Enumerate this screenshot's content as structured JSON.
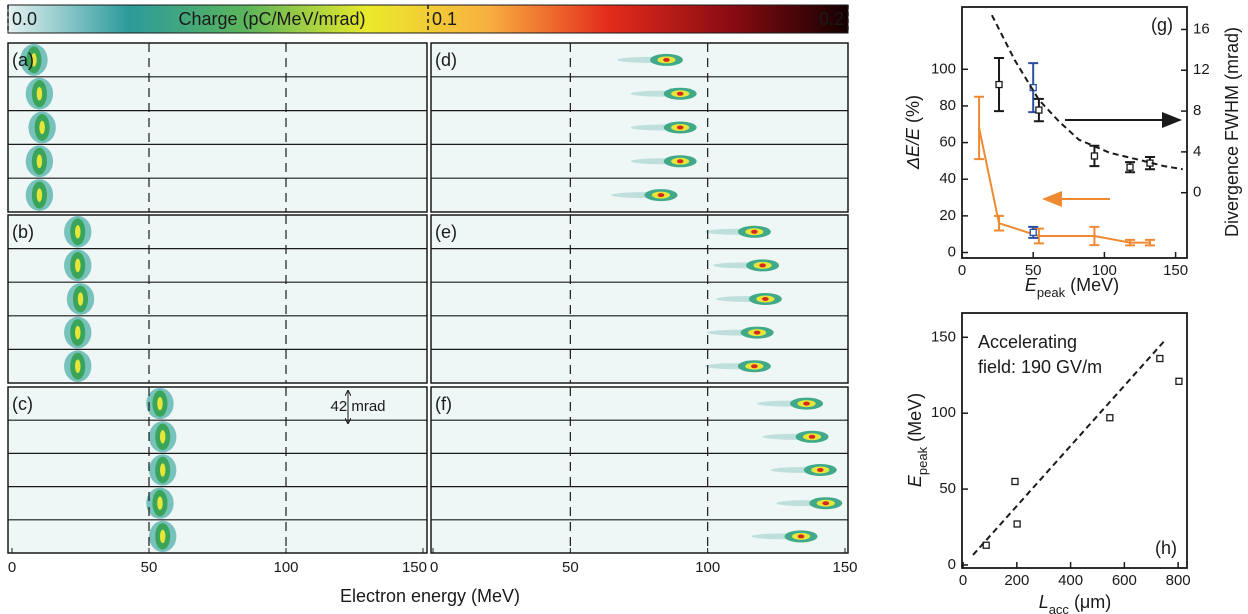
{
  "figure": {
    "xlabel": "Electron energy (MeV)"
  },
  "chart_data": [
    {
      "type": "colorbar",
      "title": "Charge (pC/MeV/mrad)",
      "xlim": [
        0,
        0.2
      ],
      "xticks": [
        {
          "value": 0,
          "label": "0.0"
        },
        0.1,
        0.2
      ],
      "colors": [
        "#e4f1f1",
        "#2c9a9c",
        "#5cb55a",
        "#eaea2a",
        "#f8b040",
        "#e42c1c",
        "#8c0c12",
        "#140000"
      ]
    },
    {
      "type": "spectra",
      "label": "(a)",
      "xlim": [
        0,
        150
      ],
      "xgrid": [
        50,
        100
      ],
      "values": [
        8,
        10,
        11,
        10,
        10
      ]
    },
    {
      "type": "spectra",
      "label": "(b)",
      "xlim": [
        0,
        150
      ],
      "xgrid": [
        50,
        100
      ],
      "values": [
        24,
        24,
        25,
        24,
        24
      ]
    },
    {
      "type": "spectra",
      "label": "(c)",
      "xlim": [
        0,
        150
      ],
      "xgrid": [
        50,
        100
      ],
      "xticks": [
        0,
        50,
        100,
        150
      ],
      "annotation": "42 mrad",
      "values": [
        54,
        55,
        55,
        54,
        55
      ]
    },
    {
      "type": "spectra",
      "label": "(d)",
      "xlim": [
        0,
        150
      ],
      "xgrid": [
        50,
        100
      ],
      "values": [
        85,
        90,
        90,
        90,
        83
      ]
    },
    {
      "type": "spectra",
      "label": "(e)",
      "xlim": [
        0,
        150
      ],
      "xgrid": [
        50,
        100
      ],
      "values": [
        117,
        120,
        121,
        118,
        117
      ]
    },
    {
      "type": "spectra",
      "label": "(f)",
      "xlim": [
        0,
        150
      ],
      "xgrid": [
        50,
        100
      ],
      "xticks": [
        0,
        50,
        100,
        150
      ],
      "values": [
        136,
        138,
        141,
        143,
        134
      ]
    },
    {
      "type": "scatter",
      "label": "(g)",
      "xlim": [
        0,
        158
      ],
      "ylim": [
        -3,
        134
      ],
      "y2lim": [
        -6.4,
        18.2
      ],
      "xticks": [
        0,
        50,
        100,
        150
      ],
      "yticks": [
        0,
        20,
        40,
        60,
        80,
        100
      ],
      "y2ticks": [
        0,
        4,
        8,
        12,
        16
      ],
      "xlabel": {
        "symbol": "E",
        "subscript": "peak",
        "unit": "(MeV)"
      },
      "ylabel": {
        "symbol": "ΔE/E",
        "unit": "(%)"
      },
      "y2label": "Divergence FWHM (mrad)",
      "series": [
        {
          "color": "#f08a32",
          "line": true,
          "marker": "none",
          "x": [
            12,
            26,
            54,
            93,
            118,
            132
          ],
          "values": [
            68,
            16,
            9,
            9,
            5.4,
            5.4
          ],
          "errors": [
            17,
            4,
            4,
            5,
            1.5,
            1.5
          ]
        },
        {
          "color": "#2b4fa2",
          "marker": "square",
          "x": [
            50
          ],
          "values": [
            11
          ],
          "errors": [
            3
          ]
        },
        {
          "color": "#2b4fa2",
          "marker": "square",
          "axis": "y2",
          "x": [
            50
          ],
          "values": [
            10.3
          ],
          "errors": [
            2.4
          ]
        },
        {
          "color": "#1a1a1a",
          "marker": "square",
          "axis": "y2",
          "x": [
            26,
            54,
            93,
            118,
            132
          ],
          "values": [
            10.6,
            8.1,
            3.6,
            2.5,
            2.9
          ],
          "errors": [
            2.6,
            1.1,
            1,
            0.5,
            0.6
          ]
        },
        {
          "color": "#1a1a1a",
          "line": true,
          "dash": true,
          "marker": "none",
          "axis": "y2",
          "x": [
            21,
            37,
            54,
            68,
            82,
            104,
            125,
            142,
            155
          ],
          "values": [
            17.4,
            13,
            9.1,
            7,
            5.2,
            3.9,
            3.2,
            2.6,
            2.3
          ]
        }
      ]
    },
    {
      "type": "scatter",
      "label": "(h)",
      "annotation": [
        "Accelerating",
        "field: 190 GV/m"
      ],
      "xlim": [
        -4,
        833
      ],
      "ylim": [
        -2,
        166
      ],
      "xticks": [
        0,
        200,
        400,
        600,
        800
      ],
      "yticks": [
        0,
        50,
        100,
        150
      ],
      "xlabel": {
        "symbol": "L",
        "subscript": "acc",
        "unit": "(μm)"
      },
      "ylabel": {
        "symbol": "E",
        "subscript": "peak",
        "unit": "(MeV)"
      },
      "series": [
        {
          "color": "#1a1a1a",
          "marker": "square",
          "x": [
            86,
            193,
            201,
            546,
            732,
            803
          ],
          "values": [
            13,
            55,
            27,
            97,
            136,
            121
          ]
        },
        {
          "color": "#1a1a1a",
          "line": true,
          "dash": true,
          "marker": "none",
          "x": [
            37,
            751
          ],
          "values": [
            6.6,
            148
          ]
        }
      ]
    }
  ]
}
